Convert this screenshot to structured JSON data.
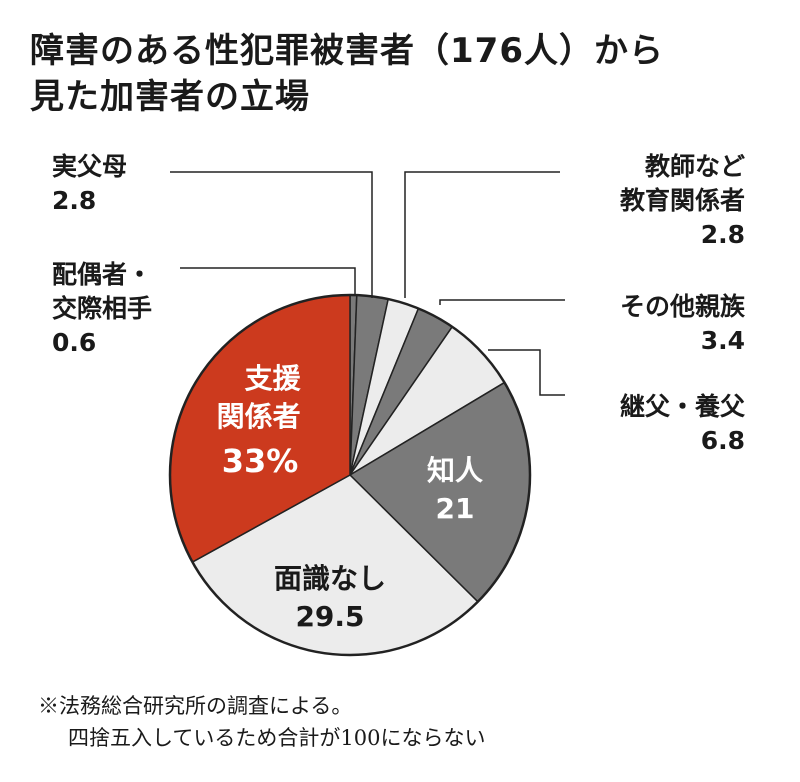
{
  "chart_data": {
    "type": "pie",
    "title": [
      "障害のある性犯罪被害者（176人）から",
      "見た加害者の立場"
    ],
    "unit": "%",
    "slices": [
      {
        "label": "配偶者・交際相手",
        "value": 0.6,
        "color": "#7a7a7a"
      },
      {
        "label": "実父母",
        "value": 2.8,
        "color": "#7a7a7a"
      },
      {
        "label": "教師など教育関係者",
        "value": 2.8,
        "color": "#ececec"
      },
      {
        "label": "その他親族",
        "value": 3.4,
        "color": "#7a7a7a"
      },
      {
        "label": "継父・養父",
        "value": 6.8,
        "color": "#ececec"
      },
      {
        "label": "知人",
        "value": 21,
        "color": "#7a7a7a"
      },
      {
        "label": "面識なし",
        "value": 29.5,
        "color": "#ececec"
      },
      {
        "label": "支援関係者",
        "value": 33,
        "color": "#cc3a1e"
      }
    ]
  },
  "labels": {
    "spouse": [
      "配偶者・",
      "交際相手",
      "0.6"
    ],
    "parents": [
      "実父母",
      "2.8"
    ],
    "teacher": [
      "教師など",
      "教育関係者",
      "2.8"
    ],
    "relatives": [
      "その他親族",
      "3.4"
    ],
    "stepfather": [
      "継父・養父",
      "6.8"
    ],
    "acquaintance": [
      "知人",
      "21"
    ],
    "stranger": [
      "面識なし",
      "29.5"
    ],
    "support": [
      "支援",
      "関係者",
      "33%"
    ]
  },
  "note": [
    "※法務総合研究所の調査による。",
    "四捨五入しているため合計が100にならない"
  ]
}
